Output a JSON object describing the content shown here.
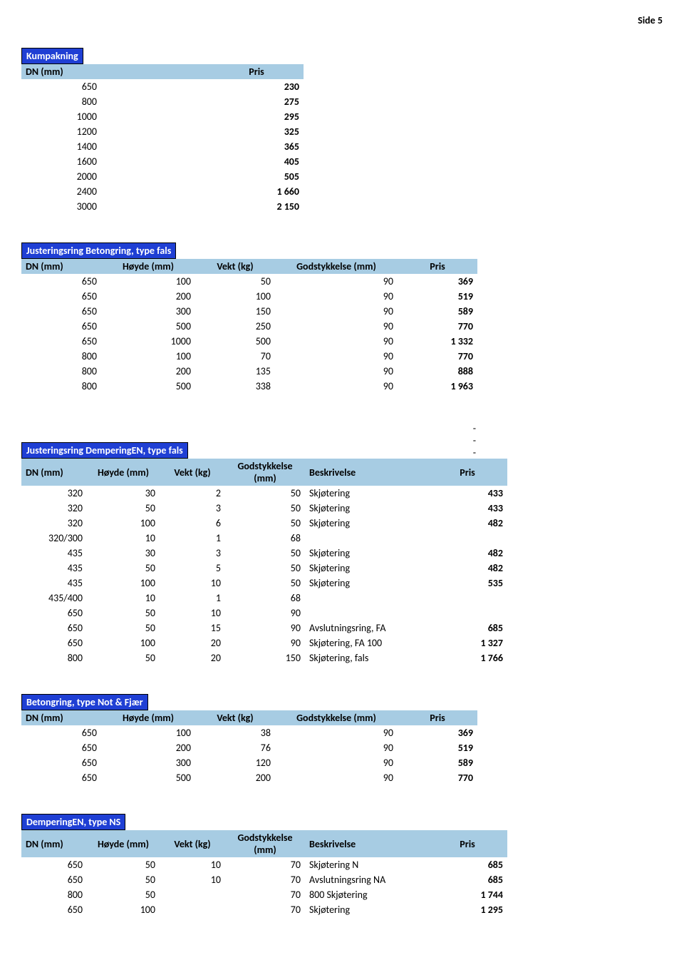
{
  "page_label": "Side 5",
  "colors": {
    "badge_bg": "#1f3fd4",
    "header_bg": "#a7cce3"
  },
  "kumpakning": {
    "title": "Kumpakning",
    "headers": {
      "dn": "DN (mm)",
      "pris": "Pris"
    },
    "rows": [
      {
        "dn": "650",
        "pris": "230"
      },
      {
        "dn": "800",
        "pris": "275"
      },
      {
        "dn": "1000",
        "pris": "295"
      },
      {
        "dn": "1200",
        "pris": "325"
      },
      {
        "dn": "1400",
        "pris": "365"
      },
      {
        "dn": "1600",
        "pris": "405"
      },
      {
        "dn": "2000",
        "pris": "505"
      },
      {
        "dn": "2400",
        "pris": "1 660"
      },
      {
        "dn": "3000",
        "pris": "2 150"
      }
    ]
  },
  "justeringsring_betongring": {
    "title": "Justeringsring Betongring, type fals",
    "headers": {
      "dn": "DN (mm)",
      "hoyde": "Høyde (mm)",
      "vekt": "Vekt (kg)",
      "gods": "Godstykkelse (mm)",
      "pris": "Pris"
    },
    "rows": [
      {
        "dn": "650",
        "hoyde": "100",
        "vekt": "50",
        "gods": "90",
        "pris": "369"
      },
      {
        "dn": "650",
        "hoyde": "200",
        "vekt": "100",
        "gods": "90",
        "pris": "519"
      },
      {
        "dn": "650",
        "hoyde": "300",
        "vekt": "150",
        "gods": "90",
        "pris": "589"
      },
      {
        "dn": "650",
        "hoyde": "500",
        "vekt": "250",
        "gods": "90",
        "pris": "770"
      },
      {
        "dn": "650",
        "hoyde": "1000",
        "vekt": "500",
        "gods": "90",
        "pris": "1 332"
      },
      {
        "dn": "800",
        "hoyde": "100",
        "vekt": "70",
        "gods": "90",
        "pris": "770"
      },
      {
        "dn": "800",
        "hoyde": "200",
        "vekt": "135",
        "gods": "90",
        "pris": "888"
      },
      {
        "dn": "800",
        "hoyde": "500",
        "vekt": "338",
        "gods": "90",
        "pris": "1 963"
      }
    ]
  },
  "dashes": [
    "-",
    "-",
    "-"
  ],
  "justeringsring_demperingen": {
    "title": "Justeringsring DemperingEN, type fals",
    "headers": {
      "dn": "DN (mm)",
      "hoyde": "Høyde (mm)",
      "vekt": "Vekt (kg)",
      "gods": "Godstykkelse (mm)",
      "beskrivelse": "Beskrivelse",
      "pris": "Pris"
    },
    "rows": [
      {
        "dn": "320",
        "hoyde": "30",
        "vekt": "2",
        "gods": "50",
        "beskrivelse": "Skjøtering",
        "pris": "433"
      },
      {
        "dn": "320",
        "hoyde": "50",
        "vekt": "3",
        "gods": "50",
        "beskrivelse": "Skjøtering",
        "pris": "433"
      },
      {
        "dn": "320",
        "hoyde": "100",
        "vekt": "6",
        "gods": "50",
        "beskrivelse": "Skjøtering",
        "pris": "482"
      },
      {
        "dn": "320/300",
        "hoyde": "10",
        "vekt": "1",
        "gods": "68",
        "beskrivelse": "",
        "pris": ""
      },
      {
        "dn": "435",
        "hoyde": "30",
        "vekt": "3",
        "gods": "50",
        "beskrivelse": "Skjøtering",
        "pris": "482"
      },
      {
        "dn": "435",
        "hoyde": "50",
        "vekt": "5",
        "gods": "50",
        "beskrivelse": "Skjøtering",
        "pris": "482"
      },
      {
        "dn": "435",
        "hoyde": "100",
        "vekt": "10",
        "gods": "50",
        "beskrivelse": "Skjøtering",
        "pris": "535"
      },
      {
        "dn": "435/400",
        "hoyde": "10",
        "vekt": "1",
        "gods": "68",
        "beskrivelse": "",
        "pris": ""
      },
      {
        "dn": "650",
        "hoyde": "50",
        "vekt": "10",
        "gods": "90",
        "beskrivelse": "",
        "pris": ""
      },
      {
        "dn": "650",
        "hoyde": "50",
        "vekt": "15",
        "gods": "90",
        "beskrivelse": "Avslutningsring, FA",
        "pris": "685"
      },
      {
        "dn": "650",
        "hoyde": "100",
        "vekt": "20",
        "gods": "90",
        "beskrivelse": "Skjøtering, FA 100",
        "pris": "1 327"
      },
      {
        "dn": "800",
        "hoyde": "50",
        "vekt": "20",
        "gods": "150",
        "beskrivelse": "Skjøtering, fals",
        "pris": "1 766"
      }
    ]
  },
  "betongring_notfjaer": {
    "title": "Betongring, type Not & Fjær",
    "headers": {
      "dn": "DN (mm)",
      "hoyde": "Høyde (mm)",
      "vekt": "Vekt (kg)",
      "gods": "Godstykkelse (mm)",
      "pris": "Pris"
    },
    "rows": [
      {
        "dn": "650",
        "hoyde": "100",
        "vekt": "38",
        "gods": "90",
        "pris": "369"
      },
      {
        "dn": "650",
        "hoyde": "200",
        "vekt": "76",
        "gods": "90",
        "pris": "519"
      },
      {
        "dn": "650",
        "hoyde": "300",
        "vekt": "120",
        "gods": "90",
        "pris": "589"
      },
      {
        "dn": "650",
        "hoyde": "500",
        "vekt": "200",
        "gods": "90",
        "pris": "770"
      }
    ]
  },
  "demperingen_ns": {
    "title": "DemperingEN, type NS",
    "headers": {
      "dn": "DN (mm)",
      "hoyde": "Høyde (mm)",
      "vekt": "Vekt (kg)",
      "gods": "Godstykkelse (mm)",
      "beskrivelse": "Beskrivelse",
      "pris": "Pris"
    },
    "rows": [
      {
        "dn": "650",
        "hoyde": "50",
        "vekt": "10",
        "gods": "70",
        "beskrivelse": "Skjøtering N",
        "pris": "685"
      },
      {
        "dn": "650",
        "hoyde": "50",
        "vekt": "10",
        "gods": "70",
        "beskrivelse": "Avslutningsring NA",
        "pris": "685"
      },
      {
        "dn": "800",
        "hoyde": "50",
        "vekt": "",
        "gods": "70",
        "beskrivelse": "800 Skjøtering",
        "pris": "1 744"
      },
      {
        "dn": "650",
        "hoyde": "100",
        "vekt": "",
        "gods": "70",
        "beskrivelse": "Skjøtering",
        "pris": "1 295"
      }
    ]
  }
}
